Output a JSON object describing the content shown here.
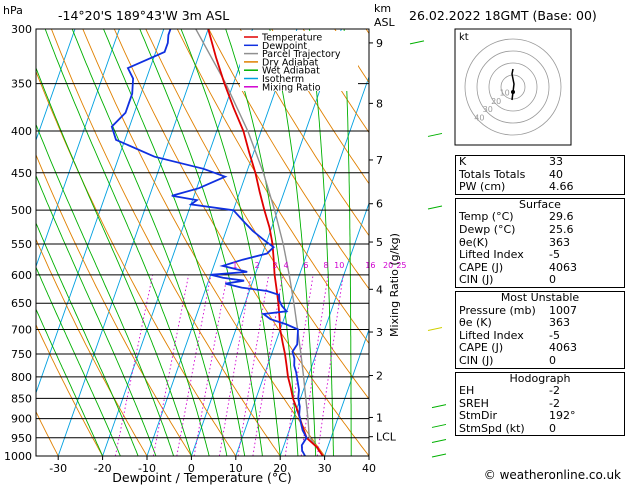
{
  "header": {
    "unit_label": "hPa",
    "location": "-14°20'S  189°43'W  3m  ASL",
    "km_label": "km",
    "asl_label": "ASL",
    "datetime": "26.02.2022  18GMT  (Base: 00)"
  },
  "chart_data": {
    "type": "line",
    "title": "Skew-T log-P diagram",
    "xlabel": "Dewpoint / Temperature (°C)",
    "ylabel": "hPa",
    "ylabel_right": "Mixing Ratio (g/kg)",
    "xlim": [
      -35,
      40
    ],
    "ylim": [
      1000,
      300
    ],
    "x_ticks": [
      "-30",
      "-20",
      "-10",
      "0",
      "10",
      "20",
      "30",
      "40"
    ],
    "x_tick_values": [
      -30,
      -20,
      -10,
      0,
      10,
      20,
      30,
      40
    ],
    "pressure_levels": [
      300,
      350,
      400,
      450,
      500,
      550,
      600,
      650,
      700,
      750,
      800,
      850,
      900,
      950,
      1000
    ],
    "km_ticks": [
      {
        "label": "9",
        "p": 312
      },
      {
        "label": "8",
        "p": 370
      },
      {
        "label": "7",
        "p": 434
      },
      {
        "label": "6",
        "p": 491
      },
      {
        "label": "5",
        "p": 547
      },
      {
        "label": "4",
        "p": 625
      },
      {
        "label": "3",
        "p": 705
      },
      {
        "label": "2",
        "p": 797
      },
      {
        "label": "1",
        "p": 897
      },
      {
        "label": "LCL",
        "p": 947
      }
    ],
    "mixing_ratio_labels": [
      {
        "label": "1",
        "x": -5.0,
        "p": 590
      },
      {
        "label": "2",
        "x": 0.0,
        "p": 590
      },
      {
        "label": "3",
        "x": 4.0,
        "p": 590
      },
      {
        "label": "4",
        "x": 6.5,
        "p": 590
      },
      {
        "label": "6",
        "x": 11.0,
        "p": 590
      },
      {
        "label": "8",
        "x": 15.5,
        "p": 590
      },
      {
        "label": "10",
        "x": 18.5,
        "p": 590
      },
      {
        "label": "16",
        "x": 25.5,
        "p": 590
      },
      {
        "label": "20",
        "x": 29.5,
        "p": 590
      },
      {
        "label": "25",
        "x": 32.5,
        "p": 590
      }
    ],
    "legend": [
      {
        "name": "Temperature",
        "color": "#e00000"
      },
      {
        "name": "Dewpoint",
        "color": "#1030e0"
      },
      {
        "name": "Parcel Trajectory",
        "color": "#909090"
      },
      {
        "name": "Dry Adiabat",
        "color": "#e08000"
      },
      {
        "name": "Wet Adiabat",
        "color": "#00b000"
      },
      {
        "name": "Isotherm",
        "color": "#00a0e0"
      },
      {
        "name": "Mixing Ratio",
        "color": "#d000d0"
      }
    ],
    "series": [
      {
        "name": "Temperature",
        "color": "#e00000",
        "points": [
          [
            1000,
            29.6
          ],
          [
            975,
            27.5
          ],
          [
            950,
            24.5
          ],
          [
            925,
            23.0
          ],
          [
            900,
            21.5
          ],
          [
            875,
            20.0
          ],
          [
            850,
            18.3
          ],
          [
            825,
            17.0
          ],
          [
            800,
            15.5
          ],
          [
            775,
            14.3
          ],
          [
            750,
            13.0
          ],
          [
            725,
            11.5
          ],
          [
            700,
            10.0
          ],
          [
            675,
            8.8
          ],
          [
            650,
            7.5
          ],
          [
            625,
            6.0
          ],
          [
            600,
            4.4
          ],
          [
            575,
            3.0
          ],
          [
            550,
            1.5
          ],
          [
            525,
            -0.5
          ],
          [
            500,
            -3.0
          ],
          [
            475,
            -5.5
          ],
          [
            450,
            -8.0
          ],
          [
            425,
            -11.0
          ],
          [
            400,
            -14.0
          ],
          [
            375,
            -18.0
          ],
          [
            350,
            -22.0
          ],
          [
            325,
            -26.0
          ],
          [
            300,
            -30.0
          ]
        ]
      },
      {
        "name": "Dewpoint",
        "color": "#1030e0",
        "points": [
          [
            1000,
            25.6
          ],
          [
            985,
            24.5
          ],
          [
            970,
            24.0
          ],
          [
            950,
            24.5
          ],
          [
            930,
            23.0
          ],
          [
            910,
            22.0
          ],
          [
            890,
            21.0
          ],
          [
            870,
            20.5
          ],
          [
            850,
            19.5
          ],
          [
            830,
            19.0
          ],
          [
            810,
            18.0
          ],
          [
            790,
            17.0
          ],
          [
            775,
            16.0
          ],
          [
            760,
            15.5
          ],
          [
            745,
            14.5
          ],
          [
            730,
            15.0
          ],
          [
            715,
            14.5
          ],
          [
            700,
            14.0
          ],
          [
            690,
            11.0
          ],
          [
            680,
            7.0
          ],
          [
            670,
            5.0
          ],
          [
            665,
            10.0
          ],
          [
            655,
            8.5
          ],
          [
            645,
            7.5
          ],
          [
            635,
            7.0
          ],
          [
            628,
            4.0
          ],
          [
            622,
            -2.0
          ],
          [
            615,
            -6.0
          ],
          [
            610,
            -2.0
          ],
          [
            605,
            -7.0
          ],
          [
            600,
            -10.0
          ],
          [
            595,
            -2.0
          ],
          [
            585,
            -8.0
          ],
          [
            575,
            -4.0
          ],
          [
            565,
            1.0
          ],
          [
            555,
            2.0
          ],
          [
            545,
            -0.5
          ],
          [
            530,
            -4.0
          ],
          [
            515,
            -7.0
          ],
          [
            500,
            -10.0
          ],
          [
            492,
            -20.0
          ],
          [
            486,
            -19.0
          ],
          [
            480,
            -25.0
          ],
          [
            470,
            -19.5
          ],
          [
            455,
            -14.5
          ],
          [
            445,
            -20.0
          ],
          [
            430,
            -32.0
          ],
          [
            410,
            -42.0
          ],
          [
            395,
            -44.0
          ],
          [
            380,
            -42.0
          ],
          [
            360,
            -42.0
          ],
          [
            345,
            -43.0
          ],
          [
            335,
            -45.0
          ],
          [
            320,
            -38.0
          ],
          [
            312,
            -38.0
          ],
          [
            305,
            -38.5
          ],
          [
            300,
            -38.5
          ]
        ]
      },
      {
        "name": "Parcel Trajectory",
        "color": "#909090",
        "points": [
          [
            1000,
            29.6
          ],
          [
            947,
            25.0
          ],
          [
            900,
            23.3
          ],
          [
            850,
            21.2
          ],
          [
            800,
            19.0
          ],
          [
            750,
            16.6
          ],
          [
            700,
            13.9
          ],
          [
            650,
            11.0
          ],
          [
            600,
            7.7
          ],
          [
            550,
            3.9
          ],
          [
            500,
            -0.7
          ],
          [
            450,
            -6.2
          ],
          [
            400,
            -13.0
          ],
          [
            350,
            -21.7
          ],
          [
            300,
            -32.8
          ]
        ]
      }
    ]
  },
  "hodograph": {
    "label": "kt",
    "ring_labels": [
      "10",
      "20",
      "30",
      "40"
    ]
  },
  "stats": {
    "top": [
      {
        "key": "K",
        "val": "33"
      },
      {
        "key": "Totals Totals",
        "val": "40"
      },
      {
        "key": "PW (cm)",
        "val": "4.66"
      }
    ],
    "surface": {
      "title": "Surface",
      "rows": [
        {
          "key": "Temp (°C)",
          "val": "29.6"
        },
        {
          "key": "Dewp (°C)",
          "val": "25.6"
        },
        {
          "key": "θe(K)",
          "val": "363"
        },
        {
          "key": "Lifted Index",
          "val": "-5"
        },
        {
          "key": "CAPE (J)",
          "val": "4063"
        },
        {
          "key": "CIN (J)",
          "val": "0"
        }
      ]
    },
    "unstable": {
      "title": "Most Unstable",
      "rows": [
        {
          "key": "Pressure (mb)",
          "val": "1007"
        },
        {
          "key": "θe (K)",
          "val": "363"
        },
        {
          "key": "Lifted Index",
          "val": "-5"
        },
        {
          "key": "CAPE (J)",
          "val": "4063"
        },
        {
          "key": "CIN (J)",
          "val": "0"
        }
      ]
    },
    "hodo": {
      "title": "Hodograph",
      "rows": [
        {
          "key": "EH",
          "val": "-2"
        },
        {
          "key": "SREH",
          "val": "-2"
        },
        {
          "key": "StmDir",
          "val": "192°"
        },
        {
          "key": "StmSpd (kt)",
          "val": "0"
        }
      ]
    }
  },
  "copyright": "© weatheronline.co.uk"
}
